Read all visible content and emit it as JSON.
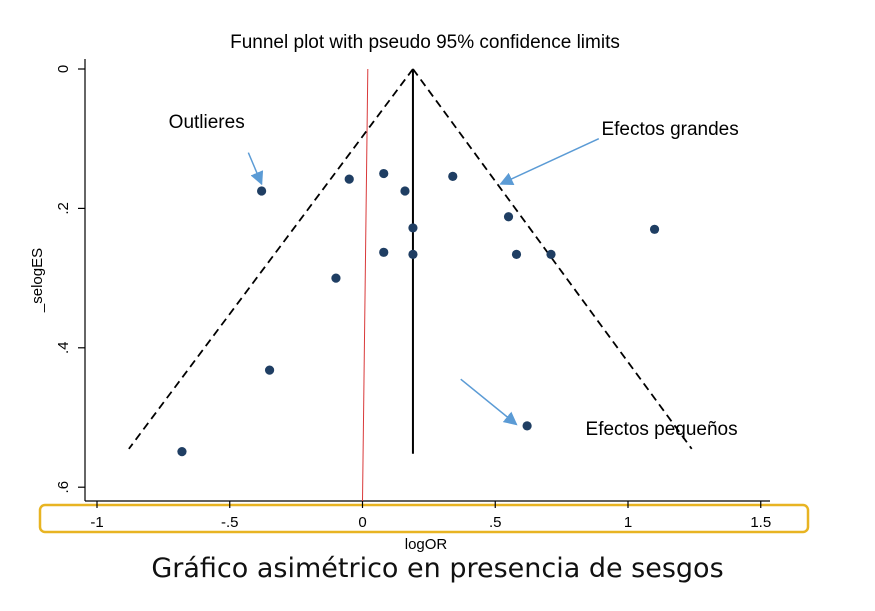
{
  "caption": "Gráfico asimétrico en presencia de sesgos",
  "chart_data": {
    "type": "scatter",
    "title": "Funnel plot with pseudo 95% confidence limits",
    "xlabel": "logOR",
    "ylabel": "_selogES",
    "xlim": [
      -1.05,
      1.55
    ],
    "ylim": [
      0,
      0.61
    ],
    "y_reversed": true,
    "x_ticks": [
      -1,
      -0.5,
      0,
      0.5,
      1,
      1.5
    ],
    "x_tick_labels": [
      "-1",
      "-.5",
      "0",
      ".5",
      "1",
      "1.5"
    ],
    "y_ticks": [
      0,
      0.2,
      0.4,
      0.6
    ],
    "y_tick_labels": [
      "0",
      ".2",
      ".4",
      ".6"
    ],
    "grid": false,
    "points": [
      {
        "x": -0.38,
        "y": 0.175
      },
      {
        "x": -0.05,
        "y": 0.158
      },
      {
        "x": 0.08,
        "y": 0.15
      },
      {
        "x": 0.16,
        "y": 0.175
      },
      {
        "x": 0.34,
        "y": 0.154
      },
      {
        "x": 0.19,
        "y": 0.228
      },
      {
        "x": 0.55,
        "y": 0.212
      },
      {
        "x": 1.1,
        "y": 0.23
      },
      {
        "x": 0.08,
        "y": 0.263
      },
      {
        "x": 0.19,
        "y": 0.266
      },
      {
        "x": 0.58,
        "y": 0.266
      },
      {
        "x": 0.71,
        "y": 0.266
      },
      {
        "x": -0.1,
        "y": 0.3
      },
      {
        "x": -0.35,
        "y": 0.432
      },
      {
        "x": 0.62,
        "y": 0.512
      },
      {
        "x": -0.68,
        "y": 0.549
      }
    ],
    "pooled_estimate": 0.19,
    "funnel": {
      "apex": [
        0.19,
        0
      ],
      "left_end": [
        -0.88,
        0.545
      ],
      "right_end": [
        1.24,
        0.545
      ]
    },
    "vertical_line_max": 0.552,
    "null_line": {
      "x_top": 0.02,
      "x_bottom": 0.0
    },
    "colors": {
      "points": "#1F3E63",
      "null_line": "#D9393A",
      "arrows": "#5B9BD5",
      "highlight": "#E8B422"
    },
    "annotations": [
      {
        "text": "Outlieres",
        "x": -0.73,
        "y": 0.085,
        "arrow_from": [
          -0.43,
          0.12
        ],
        "arrow_to": [
          -0.38,
          0.165
        ]
      },
      {
        "text": "Efectos grandes",
        "x": 0.9,
        "y": 0.095,
        "arrow_from": [
          0.89,
          0.1
        ],
        "arrow_to": [
          0.52,
          0.165
        ]
      },
      {
        "text": "Efectos pequeños",
        "x": 0.84,
        "y": 0.525,
        "arrow_from": [
          0.37,
          0.445
        ],
        "arrow_to": [
          0.58,
          0.51
        ]
      }
    ]
  }
}
